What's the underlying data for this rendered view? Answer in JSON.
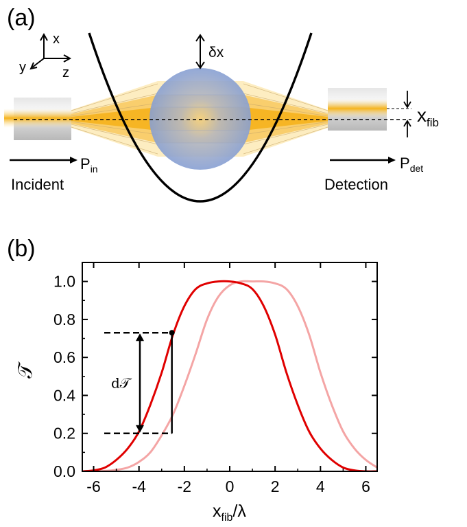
{
  "panel_a": {
    "label": "(a)",
    "axes": {
      "x": "x",
      "y": "y",
      "z": "z"
    },
    "displacement": "δx",
    "fiber_offset": {
      "main": "x",
      "sub": "fib"
    },
    "incident": {
      "power_main": "P",
      "power_sub": "in",
      "caption": "Incident"
    },
    "detection": {
      "power_main": "P",
      "power_sub": "det",
      "caption": "Detection"
    },
    "colors": {
      "beam": "#f5b31c",
      "beam_glow": "#fde9b2",
      "sphere": "#8da5d8",
      "fiber": "#c8c8c8",
      "trap": "#000000"
    }
  },
  "panel_b": {
    "label": "(b)",
    "annotation": "d𝒯"
  },
  "chart_data": {
    "type": "line",
    "title": "",
    "xlabel_main": "x",
    "xlabel_sub": "fib",
    "xlabel_tail": "/λ",
    "ylabel": "𝒯",
    "xlim": [
      -6.5,
      6.5
    ],
    "ylim": [
      0.0,
      1.1
    ],
    "xticks": [
      -6,
      -4,
      -2,
      0,
      2,
      4,
      6
    ],
    "xtick_labels": [
      "-6",
      "-4",
      "-2",
      "0",
      "2",
      "4",
      "6"
    ],
    "yticks": [
      0.0,
      0.2,
      0.4,
      0.6,
      0.8,
      1.0
    ],
    "ytick_labels": [
      "0.0",
      "0.2",
      "0.4",
      "0.6",
      "0.8",
      "1.0"
    ],
    "grid": false,
    "series": [
      {
        "color": "#e00000",
        "x": [
          -6.5,
          -6,
          -5.5,
          -5,
          -4.5,
          -4,
          -3.5,
          -3,
          -2.5,
          -2,
          -1.5,
          -1,
          -0.5,
          0,
          0.5,
          1,
          1.5,
          2,
          2.5,
          3,
          3.5,
          4,
          4.5,
          5,
          5.5,
          6,
          6.5
        ],
        "y": [
          0.0,
          0.005,
          0.02,
          0.06,
          0.12,
          0.21,
          0.35,
          0.52,
          0.72,
          0.87,
          0.96,
          0.99,
          1.0,
          1.0,
          0.99,
          0.96,
          0.87,
          0.72,
          0.52,
          0.35,
          0.21,
          0.12,
          0.06,
          0.02,
          0.005,
          0.0,
          0.0
        ]
      },
      {
        "color": "#f4a5a5",
        "x": [
          -6.5,
          -6,
          -5.5,
          -5,
          -4.5,
          -4,
          -3.5,
          -3,
          -2.5,
          -2,
          -1.5,
          -1,
          -0.5,
          0,
          0.5,
          1,
          1.5,
          2,
          2.5,
          3,
          3.5,
          4,
          4.5,
          5,
          5.5,
          6,
          6.5
        ],
        "y": [
          0.0,
          0.0,
          0.002,
          0.008,
          0.02,
          0.05,
          0.1,
          0.19,
          0.3,
          0.45,
          0.62,
          0.8,
          0.92,
          0.98,
          1.0,
          1.0,
          1.0,
          0.99,
          0.96,
          0.87,
          0.72,
          0.52,
          0.35,
          0.21,
          0.12,
          0.06,
          0.02
        ]
      }
    ],
    "annotation_points": {
      "x": -2.55,
      "y_top": 0.73,
      "y_bottom": 0.2
    }
  }
}
